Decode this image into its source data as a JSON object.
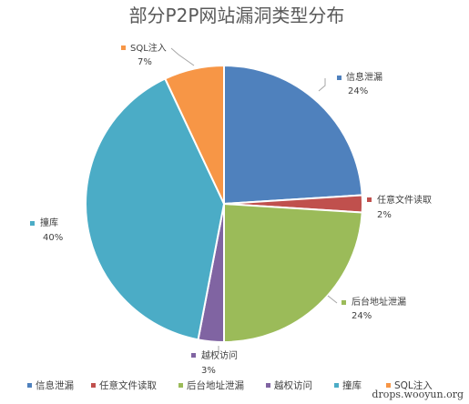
{
  "chart_data": {
    "type": "pie",
    "title": "部分P2P网站漏洞类型分布",
    "legend_position": "bottom",
    "slices": [
      {
        "label": "信息泄漏",
        "value": 24,
        "percent_text": "24%",
        "color": "#4F81BD"
      },
      {
        "label": "任意文件读取",
        "value": 2,
        "percent_text": "2%",
        "color": "#C0504D"
      },
      {
        "label": "后台地址泄漏",
        "value": 24,
        "percent_text": "24%",
        "color": "#9BBB59"
      },
      {
        "label": "越权访问",
        "value": 3,
        "percent_text": "3%",
        "color": "#8064A2"
      },
      {
        "label": "撞库",
        "value": 40,
        "percent_text": "40%",
        "color": "#4BACC6"
      },
      {
        "label": "SQL注入",
        "value": 7,
        "percent_text": "7%",
        "color": "#F79646"
      }
    ]
  },
  "watermark": "drops.wooyun.org"
}
